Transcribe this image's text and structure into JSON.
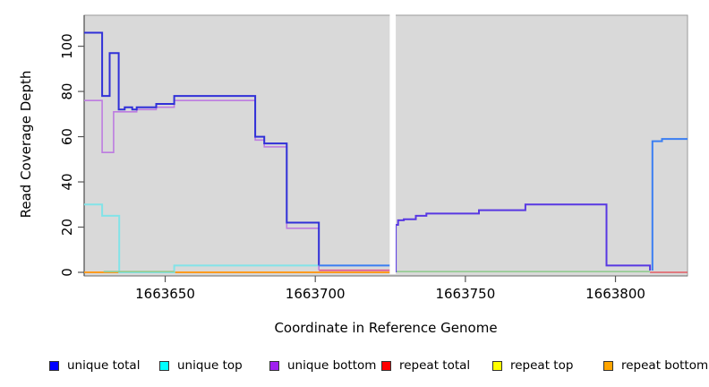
{
  "chart_data": {
    "type": "line",
    "title": "",
    "xlabel": "Coordinate in Reference Genome",
    "ylabel": "Read Coverage Depth",
    "xlim": [
      1663623,
      1663824
    ],
    "ylim": [
      0,
      110
    ],
    "grid": false,
    "plot_background": "#d9d9d9",
    "gap": {
      "from": 1663724.8,
      "to": 1663726.8,
      "note": "white column, no data at ~1663725"
    },
    "xticks": [
      {
        "value": 1663650,
        "label": "1663650"
      },
      {
        "value": 1663700,
        "label": "1663700"
      },
      {
        "value": 1663750,
        "label": "1663750"
      },
      {
        "value": 1663800,
        "label": "1663800"
      }
    ],
    "yticks": [
      {
        "value": 0,
        "label": "0"
      },
      {
        "value": 20,
        "label": "20"
      },
      {
        "value": 40,
        "label": "40"
      },
      {
        "value": 60,
        "label": "60"
      },
      {
        "value": 80,
        "label": "80"
      },
      {
        "value": 100,
        "label": "100"
      }
    ],
    "series": [
      {
        "name": "repeat bottom",
        "color": "#ff9c20",
        "width": 2,
        "points": [
          [
            1663623,
            0
          ],
          [
            1663724.8,
            0
          ]
        ]
      },
      {
        "name": "unique top",
        "color": "#82e3e8",
        "width": 2,
        "points": [
          [
            1663623,
            30
          ],
          [
            1663629,
            30
          ],
          [
            1663629,
            25
          ],
          [
            1663634.7,
            25
          ],
          [
            1663634.7,
            0
          ],
          [
            1663653,
            0
          ],
          [
            1663653,
            3
          ],
          [
            1663701.2,
            3
          ]
        ]
      },
      {
        "name": "unique top + repeat top overlap (zero, left)",
        "color": "#92cc90",
        "width": 1.6,
        "points": [
          [
            1663629.5,
            0.3
          ],
          [
            1663653,
            0.3
          ]
        ]
      },
      {
        "name": "unique top + repeat top overlap (zero, right)",
        "color": "#92cc90",
        "width": 1.6,
        "points": [
          [
            1663726.8,
            0.3
          ],
          [
            1663811.5,
            0.3
          ]
        ]
      },
      {
        "name": "repeat total over unique bottom (near zero)",
        "color": "#e0518c",
        "width": 1.6,
        "points": [
          [
            1663701.2,
            0.9
          ],
          [
            1663724.8,
            0.9
          ]
        ]
      },
      {
        "name": "repeat total (right)",
        "color": "#e25a62",
        "width": 1.6,
        "points": [
          [
            1663811.5,
            0
          ],
          [
            1663824,
            0
          ]
        ]
      },
      {
        "name": "unique bottom",
        "color": "#bd7ce0",
        "width": 1.6,
        "points": [
          [
            1663623,
            76
          ],
          [
            1663629,
            76
          ],
          [
            1663629,
            53
          ],
          [
            1663632.8,
            53
          ],
          [
            1663632.8,
            71
          ],
          [
            1663640.5,
            71
          ],
          [
            1663640.5,
            72
          ],
          [
            1663647,
            72
          ],
          [
            1663647,
            73
          ],
          [
            1663653,
            73
          ],
          [
            1663653,
            76
          ],
          [
            1663680,
            76
          ],
          [
            1663680,
            58.5
          ],
          [
            1663683,
            58.5
          ],
          [
            1663683,
            55.5
          ],
          [
            1663690.5,
            55.5
          ],
          [
            1663690.5,
            19.5
          ],
          [
            1663701.2,
            19.5
          ],
          [
            1663701.2,
            1
          ]
        ]
      },
      {
        "name": "unique total",
        "color": "#3030d8",
        "width": 2,
        "points": [
          [
            1663623,
            106
          ],
          [
            1663629,
            106
          ],
          [
            1663629,
            78
          ],
          [
            1663631.5,
            78
          ],
          [
            1663631.5,
            97
          ],
          [
            1663634.5,
            97
          ],
          [
            1663634.5,
            72
          ],
          [
            1663636.5,
            72
          ],
          [
            1663636.5,
            73
          ],
          [
            1663639,
            73
          ],
          [
            1663639,
            72
          ],
          [
            1663640.5,
            72
          ],
          [
            1663640.5,
            73
          ],
          [
            1663647,
            73
          ],
          [
            1663647,
            74.5
          ],
          [
            1663653,
            74.5
          ],
          [
            1663653,
            78
          ],
          [
            1663680,
            78
          ],
          [
            1663680,
            60
          ],
          [
            1663683,
            60
          ],
          [
            1663683,
            57
          ],
          [
            1663690.5,
            57
          ],
          [
            1663690.5,
            22
          ],
          [
            1663701.2,
            22
          ],
          [
            1663701.2,
            3
          ]
        ]
      },
      {
        "name": "unique total + unique top overlap (left of gap)",
        "color": "#3a7ef2",
        "width": 2,
        "points": [
          [
            1663701.2,
            3
          ],
          [
            1663724.8,
            3
          ]
        ]
      },
      {
        "name": "unique total + unique bottom overlap (after gap)",
        "color": "#5838e2",
        "width": 2,
        "points": [
          [
            1663726.8,
            0
          ],
          [
            1663726.8,
            21
          ],
          [
            1663727.6,
            21
          ],
          [
            1663727.6,
            23
          ],
          [
            1663729.5,
            23
          ],
          [
            1663729.5,
            23.5
          ],
          [
            1663733.5,
            23.5
          ],
          [
            1663733.5,
            25
          ],
          [
            1663737,
            25
          ],
          [
            1663737,
            26
          ],
          [
            1663754.5,
            26
          ],
          [
            1663754.5,
            27.5
          ],
          [
            1663770,
            27.5
          ],
          [
            1663770,
            30
          ],
          [
            1663797,
            30
          ],
          [
            1663797,
            3
          ],
          [
            1663811.5,
            3
          ],
          [
            1663811.5,
            0.8
          ]
        ]
      },
      {
        "name": "unique total + unique top overlap (far right)",
        "color": "#3a7ef2",
        "width": 2,
        "points": [
          [
            1663812.3,
            0.8
          ],
          [
            1663812.3,
            58
          ],
          [
            1663815.5,
            58
          ],
          [
            1663815.5,
            59
          ],
          [
            1663824,
            59
          ]
        ]
      }
    ],
    "legend_position": "bottom"
  },
  "titles": {
    "x_axis": "Coordinate in Reference Genome",
    "y_axis": "Read Coverage Depth"
  },
  "legend": {
    "items": [
      {
        "label": "unique total",
        "color": "#0000ff"
      },
      {
        "label": "unique top",
        "color": "#00ffff"
      },
      {
        "label": "unique bottom",
        "color": "#a020f0"
      },
      {
        "label": "repeat total",
        "color": "#ff0000"
      },
      {
        "label": "repeat top",
        "color": "#ffff00"
      },
      {
        "label": "repeat bottom",
        "color": "#ffa500"
      }
    ]
  }
}
